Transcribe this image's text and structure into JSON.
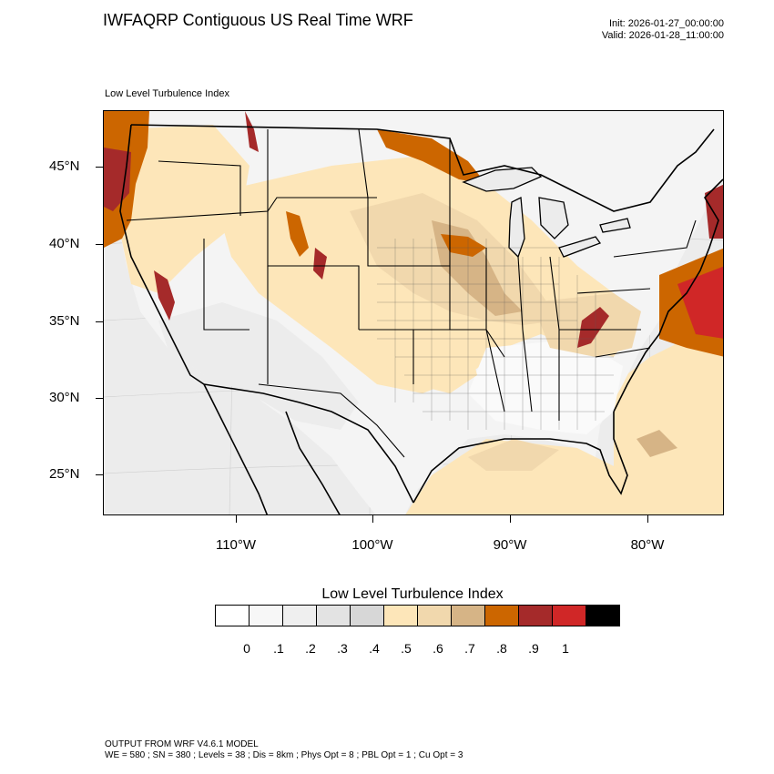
{
  "header": {
    "title": "IWFAQRP Contiguous US Real Time WRF",
    "init": "Init: 2026-01-27_00:00:00",
    "valid": "Valid: 2026-01-28_11:00:00"
  },
  "map": {
    "field_label": "Low Level Turbulence Index",
    "lat_labels": [
      "45°N",
      "40°N",
      "35°N",
      "30°N",
      "25°N"
    ],
    "lon_labels": [
      "110°W",
      "100°W",
      "90°W",
      "80°W"
    ],
    "colors": {
      "ocean_gray": "#dcdcdc",
      "land_light": "#f4f4f4",
      "tan_light": "#fde6b9",
      "tan_mid": "#f1d8ad",
      "tan_dark": "#d6b486",
      "orange": "#cc6600",
      "dark_red": "#a52a2a",
      "red": "#d02727",
      "boundary": "#000000"
    }
  },
  "legend": {
    "title": "Low Level Turbulence Index",
    "colors": [
      "#ffffff",
      "#f7f7f7",
      "#efefef",
      "#e3e3e3",
      "#d7d7d7",
      "#fde6b9",
      "#f1d8ad",
      "#d6b486",
      "#cc6600",
      "#a52a2a",
      "#d02727",
      "#000000"
    ],
    "ticks": [
      "0",
      ".1",
      ".2",
      ".3",
      ".4",
      ".5",
      ".6",
      ".7",
      ".8",
      ".9",
      "1"
    ]
  },
  "footer": {
    "line1": "OUTPUT FROM WRF V4.6.1 MODEL",
    "line2": "WE = 580 ; SN = 380 ; Levels = 38 ; Dis = 8km ; Phys Opt = 8 ; PBL Opt = 1 ; Cu Opt = 3"
  }
}
